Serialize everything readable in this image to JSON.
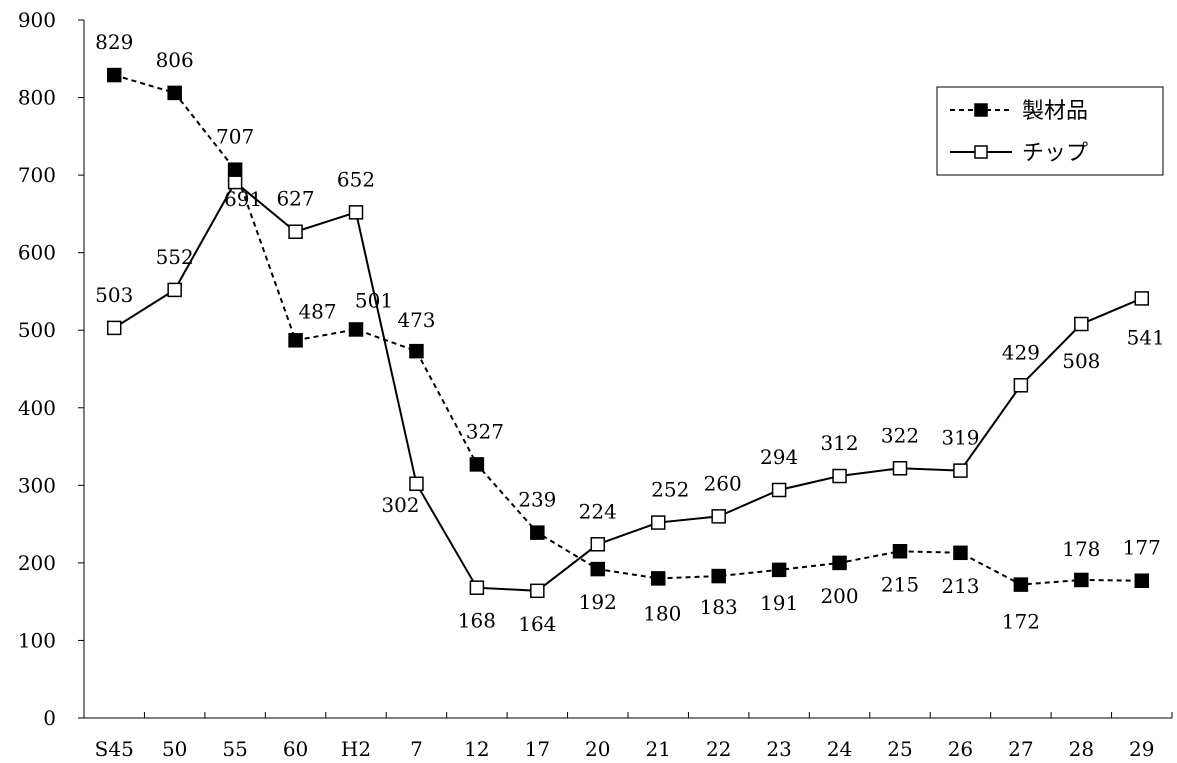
{
  "chart_data": {
    "type": "line",
    "categories": [
      "S45",
      "50",
      "55",
      "60",
      "H2",
      "7",
      "12",
      "17",
      "20",
      "21",
      "22",
      "23",
      "24",
      "25",
      "26",
      "27",
      "28",
      "29"
    ],
    "ylim": [
      0,
      900
    ],
    "yticks": [
      0,
      100,
      200,
      300,
      400,
      500,
      600,
      700,
      800,
      900
    ],
    "grid": false,
    "legend_position": "top-right",
    "series": [
      {
        "name": "製材品",
        "style": "dashed",
        "marker": "filled-square",
        "values": [
          829,
          806,
          707,
          487,
          501,
          473,
          327,
          239,
          192,
          180,
          183,
          191,
          200,
          215,
          213,
          172,
          178,
          177
        ]
      },
      {
        "name": "チップ",
        "style": "solid",
        "marker": "open-square",
        "values": [
          503,
          552,
          691,
          627,
          652,
          302,
          168,
          164,
          224,
          252,
          260,
          294,
          312,
          322,
          319,
          429,
          508,
          541
        ]
      }
    ],
    "colors": {
      "line": "#000000",
      "background": "#ffffff"
    }
  }
}
